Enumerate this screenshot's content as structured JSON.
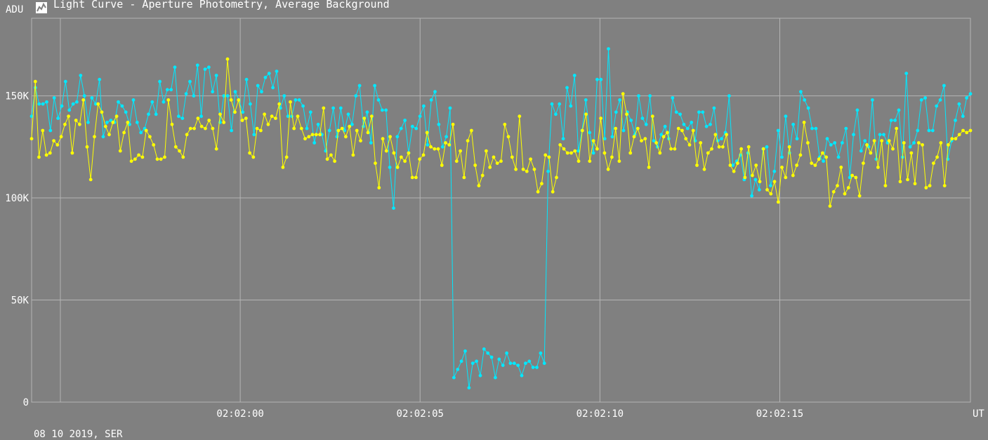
{
  "window": {
    "icon": "lightcurve-icon"
  },
  "chart_data": {
    "type": "line",
    "title": "Light Curve - Aperture Photometry, Average Background",
    "ylabel": "ADU",
    "xlabel": "UT",
    "footer": "08 10 2019, SER",
    "ylim": [
      0,
      188000
    ],
    "y_ticks": [
      {
        "value": 0,
        "label": "0"
      },
      {
        "value": 50000,
        "label": "50K"
      },
      {
        "value": 100000,
        "label": "100K"
      },
      {
        "value": 150000,
        "label": "150K"
      }
    ],
    "x_unit": "seconds after 02:01:55",
    "xlim": [
      -0.8,
      25.3
    ],
    "x_ticks": [
      {
        "value": 5,
        "label": "02:02:00"
      },
      {
        "value": 10,
        "label": "02:02:05"
      },
      {
        "value": 15,
        "label": "02:02:10"
      },
      {
        "value": 20,
        "label": "02:02:15"
      }
    ],
    "extra_vgrid": [
      0
    ],
    "series": [
      {
        "color": "#00e8ff",
        "values": [
          140000,
          154000,
          146000,
          146000,
          147000,
          133000,
          149000,
          139000,
          145000,
          157000,
          143000,
          146000,
          147000,
          160000,
          150000,
          137000,
          149000,
          146000,
          158000,
          130000,
          137000,
          138000,
          137000,
          147000,
          145000,
          142000,
          136000,
          148000,
          137000,
          132000,
          134000,
          141000,
          147000,
          141000,
          157000,
          147000,
          153000,
          153000,
          164000,
          140000,
          139000,
          151000,
          157000,
          150000,
          165000,
          140000,
          163000,
          164000,
          152000,
          160000,
          137000,
          150000,
          150000,
          133000,
          152000,
          148000,
          142000,
          158000,
          146000,
          131000,
          155000,
          152000,
          159000,
          161000,
          154000,
          162000,
          144000,
          150000,
          140000,
          140000,
          148000,
          148000,
          145000,
          134000,
          142000,
          127000,
          136000,
          131000,
          123000,
          133000,
          144000,
          130000,
          144000,
          133000,
          141000,
          136000,
          150000,
          155000,
          135000,
          142000,
          127000,
          155000,
          148000,
          143000,
          143000,
          115000,
          95000,
          130000,
          134000,
          138000,
          122000,
          135000,
          134000,
          140000,
          145000,
          126000,
          148000,
          152000,
          136000,
          125000,
          130000,
          144000,
          12000,
          16000,
          20000,
          25000,
          7000,
          19000,
          20000,
          13000,
          26000,
          24000,
          22000,
          12000,
          21000,
          18000,
          24000,
          19000,
          19000,
          18000,
          13000,
          19000,
          20000,
          17000,
          17000,
          24000,
          19000,
          113000,
          146000,
          141000,
          146000,
          129000,
          154000,
          145000,
          160000,
          123000,
          133000,
          148000,
          132000,
          122000,
          158000,
          158000,
          129000,
          173000,
          130000,
          142000,
          148000,
          133000,
          142000,
          138000,
          131000,
          150000,
          139000,
          136000,
          150000,
          128000,
          125000,
          131000,
          135000,
          129000,
          149000,
          142000,
          141000,
          136000,
          134000,
          137000,
          128000,
          142000,
          142000,
          135000,
          136000,
          144000,
          128000,
          129000,
          132000,
          150000,
          116000,
          118000,
          121000,
          109000,
          122000,
          101000,
          109000,
          104000,
          124000,
          125000,
          106000,
          113000,
          133000,
          120000,
          140000,
          122000,
          136000,
          129000,
          152000,
          148000,
          144000,
          134000,
          134000,
          120000,
          118000,
          129000,
          126000,
          127000,
          120000,
          127000,
          134000,
          110000,
          131000,
          143000,
          123000,
          128000,
          125000,
          148000,
          119000,
          131000,
          131000,
          127000,
          138000,
          138000,
          143000,
          120000,
          161000,
          125000,
          127000,
          133000,
          148000,
          149000,
          133000,
          133000,
          145000,
          148000,
          155000,
          119000,
          128000,
          138000,
          146000,
          140000,
          149000,
          151000
        ]
      },
      {
        "color": "#ffff00",
        "values": [
          129000,
          157000,
          120000,
          133000,
          121000,
          122000,
          128000,
          126000,
          130000,
          136000,
          140000,
          122000,
          138000,
          136000,
          148000,
          125000,
          109000,
          130000,
          146000,
          142000,
          135000,
          131000,
          137000,
          140000,
          123000,
          132000,
          137000,
          118000,
          119000,
          121000,
          120000,
          133000,
          130000,
          126000,
          119000,
          119000,
          120000,
          148000,
          136000,
          125000,
          123000,
          120000,
          131000,
          134000,
          134000,
          139000,
          135000,
          134000,
          138000,
          134000,
          124000,
          141000,
          137000,
          168000,
          148000,
          142000,
          148000,
          138000,
          139000,
          122000,
          120000,
          134000,
          133000,
          141000,
          136000,
          140000,
          139000,
          146000,
          115000,
          120000,
          147000,
          134000,
          140000,
          134000,
          129000,
          130000,
          131000,
          131000,
          131000,
          144000,
          119000,
          121000,
          118000,
          133000,
          134000,
          130000,
          135000,
          121000,
          133000,
          128000,
          139000,
          132000,
          140000,
          117000,
          105000,
          129000,
          123000,
          130000,
          122000,
          115000,
          120000,
          118000,
          122000,
          110000,
          110000,
          119000,
          121000,
          132000,
          125000,
          124000,
          124000,
          116000,
          127000,
          126000,
          136000,
          118000,
          123000,
          110000,
          128000,
          133000,
          116000,
          106000,
          111000,
          123000,
          115000,
          120000,
          117000,
          118000,
          136000,
          130000,
          120000,
          114000,
          140000,
          114000,
          113000,
          119000,
          114000,
          103000,
          107000,
          121000,
          120000,
          103000,
          110000,
          126000,
          124000,
          122000,
          122000,
          123000,
          118000,
          133000,
          141000,
          118000,
          128000,
          124000,
          139000,
          122000,
          114000,
          120000,
          134000,
          118000,
          151000,
          141000,
          122000,
          130000,
          134000,
          128000,
          129000,
          115000,
          140000,
          127000,
          122000,
          130000,
          132000,
          124000,
          124000,
          134000,
          133000,
          129000,
          126000,
          133000,
          116000,
          127000,
          114000,
          122000,
          124000,
          131000,
          125000,
          125000,
          131000,
          116000,
          113000,
          117000,
          124000,
          110000,
          125000,
          111000,
          116000,
          108000,
          124000,
          104000,
          102000,
          108000,
          98000,
          115000,
          110000,
          125000,
          111000,
          116000,
          121000,
          137000,
          127000,
          117000,
          116000,
          119000,
          122000,
          120000,
          96000,
          103000,
          106000,
          115000,
          102000,
          105000,
          111000,
          110000,
          101000,
          117000,
          126000,
          122000,
          128000,
          115000,
          128000,
          106000,
          128000,
          124000,
          134000,
          108000,
          127000,
          109000,
          122000,
          107000,
          127000,
          126000,
          105000,
          106000,
          117000,
          120000,
          127000,
          106000,
          126000,
          129000,
          129000,
          131000,
          133000,
          132000,
          133000
        ]
      }
    ]
  }
}
